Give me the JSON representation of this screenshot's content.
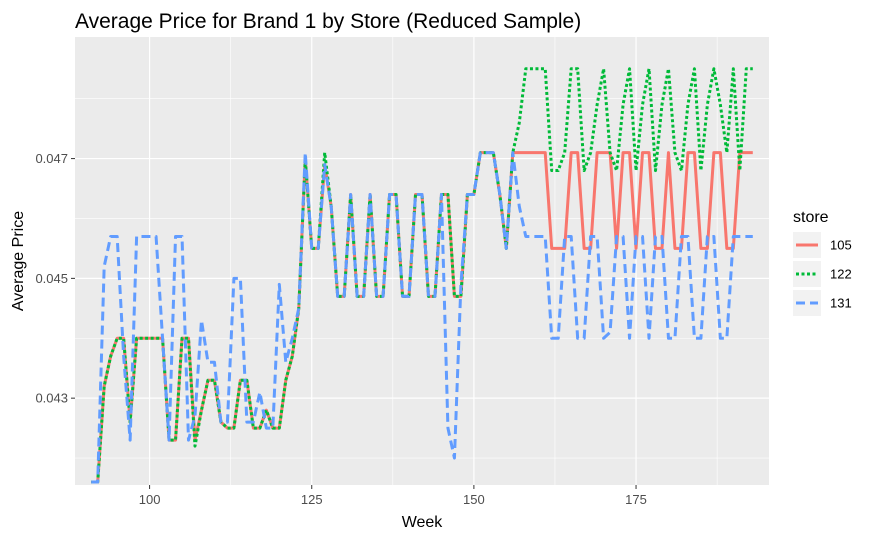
{
  "chart_data": {
    "type": "line",
    "title": "Average Price for Brand 1 by Store (Reduced Sample)",
    "xlabel": "Week",
    "ylabel": "Average Price",
    "xlim": [
      88.5,
      195.5
    ],
    "ylim": [
      0.04155,
      0.04903
    ],
    "x_ticks": [
      100,
      125,
      150,
      175
    ],
    "x_tick_labels": [
      "100",
      "125",
      "150",
      "175"
    ],
    "y_ticks": [
      0.043,
      0.045,
      0.047
    ],
    "y_tick_labels": [
      "0.043",
      "0.045",
      "0.047"
    ],
    "grid": true,
    "legend": {
      "title": "store",
      "position": "right"
    },
    "series": [
      {
        "name": "105",
        "color": "#F8766D",
        "dash": "solid",
        "points": [
          [
            91,
            0.0416
          ],
          [
            92,
            0.0416
          ],
          [
            93,
            0.0432
          ],
          [
            94,
            0.0437
          ],
          [
            95,
            0.044
          ],
          [
            96,
            0.044
          ],
          [
            97,
            0.0426
          ],
          [
            98,
            0.044
          ],
          [
            99,
            0.044
          ],
          [
            100,
            0.044
          ],
          [
            101,
            0.044
          ],
          [
            102,
            0.044
          ],
          [
            103,
            0.0423
          ],
          [
            104,
            0.0423
          ],
          [
            105,
            0.044
          ],
          [
            106,
            0.044
          ],
          [
            107,
            0.0423
          ],
          [
            108,
            0.0428
          ],
          [
            109,
            0.0433
          ],
          [
            110,
            0.0433
          ],
          [
            111,
            0.0426
          ],
          [
            112,
            0.0425
          ],
          [
            113,
            0.0425
          ],
          [
            114,
            0.0433
          ],
          [
            115,
            0.0433
          ],
          [
            116,
            0.0425
          ],
          [
            117,
            0.0425
          ],
          [
            118,
            0.0428
          ],
          [
            119,
            0.0425
          ],
          [
            120,
            0.0425
          ],
          [
            121,
            0.0433
          ],
          [
            122,
            0.0437
          ],
          [
            123,
            0.0445
          ],
          [
            124,
            0.047
          ],
          [
            125,
            0.0455
          ],
          [
            126,
            0.0455
          ],
          [
            127,
            0.0469
          ],
          [
            128,
            0.0462
          ],
          [
            129,
            0.0447
          ],
          [
            130,
            0.0447
          ],
          [
            131,
            0.0464
          ],
          [
            132,
            0.0447
          ],
          [
            133,
            0.0447
          ],
          [
            134,
            0.0464
          ],
          [
            135,
            0.0447
          ],
          [
            136,
            0.0447
          ],
          [
            137,
            0.0464
          ],
          [
            138,
            0.0464
          ],
          [
            139,
            0.0447
          ],
          [
            140,
            0.0447
          ],
          [
            141,
            0.0464
          ],
          [
            142,
            0.0464
          ],
          [
            143,
            0.0447
          ],
          [
            144,
            0.0447
          ],
          [
            145,
            0.0464
          ],
          [
            146,
            0.0464
          ],
          [
            147,
            0.0447
          ],
          [
            148,
            0.0447
          ],
          [
            149,
            0.0464
          ],
          [
            150,
            0.0464
          ],
          [
            151,
            0.0471
          ],
          [
            152,
            0.0471
          ],
          [
            153,
            0.0471
          ],
          [
            154,
            0.0464
          ],
          [
            155,
            0.0455
          ],
          [
            156,
            0.0471
          ],
          [
            157,
            0.0471
          ],
          [
            158,
            0.0471
          ],
          [
            159,
            0.0471
          ],
          [
            160,
            0.0471
          ],
          [
            161,
            0.0471
          ],
          [
            162,
            0.0455
          ],
          [
            163,
            0.0455
          ],
          [
            164,
            0.0455
          ],
          [
            165,
            0.0471
          ],
          [
            166,
            0.0471
          ],
          [
            167,
            0.0455
          ],
          [
            168,
            0.0455
          ],
          [
            169,
            0.0471
          ],
          [
            170,
            0.0471
          ],
          [
            171,
            0.0471
          ],
          [
            172,
            0.0455
          ],
          [
            173,
            0.0471
          ],
          [
            174,
            0.0471
          ],
          [
            175,
            0.0455
          ],
          [
            176,
            0.0471
          ],
          [
            177,
            0.0471
          ],
          [
            178,
            0.0455
          ],
          [
            179,
            0.0455
          ],
          [
            180,
            0.0471
          ],
          [
            181,
            0.0455
          ],
          [
            182,
            0.0455
          ],
          [
            183,
            0.0471
          ],
          [
            184,
            0.0471
          ],
          [
            185,
            0.0455
          ],
          [
            186,
            0.0455
          ],
          [
            187,
            0.0471
          ],
          [
            188,
            0.0471
          ],
          [
            189,
            0.0455
          ],
          [
            190,
            0.0455
          ],
          [
            191,
            0.0471
          ],
          [
            192,
            0.0471
          ],
          [
            193,
            0.0471
          ]
        ]
      },
      {
        "name": "122",
        "color": "#00BA38",
        "dash": "dotted",
        "points": [
          [
            91,
            0.0416
          ],
          [
            92,
            0.0416
          ],
          [
            93,
            0.0432
          ],
          [
            94,
            0.0437
          ],
          [
            95,
            0.044
          ],
          [
            96,
            0.044
          ],
          [
            97,
            0.0426
          ],
          [
            98,
            0.044
          ],
          [
            99,
            0.044
          ],
          [
            100,
            0.044
          ],
          [
            101,
            0.044
          ],
          [
            102,
            0.044
          ],
          [
            103,
            0.0423
          ],
          [
            104,
            0.0423
          ],
          [
            105,
            0.044
          ],
          [
            106,
            0.044
          ],
          [
            107,
            0.0422
          ],
          [
            108,
            0.0428
          ],
          [
            109,
            0.0433
          ],
          [
            110,
            0.0433
          ],
          [
            111,
            0.0426
          ],
          [
            112,
            0.0425
          ],
          [
            113,
            0.0425
          ],
          [
            114,
            0.0433
          ],
          [
            115,
            0.0433
          ],
          [
            116,
            0.0425
          ],
          [
            117,
            0.0425
          ],
          [
            118,
            0.0428
          ],
          [
            119,
            0.0425
          ],
          [
            120,
            0.0425
          ],
          [
            121,
            0.0433
          ],
          [
            122,
            0.0437
          ],
          [
            123,
            0.0445
          ],
          [
            124,
            0.047
          ],
          [
            125,
            0.0455
          ],
          [
            126,
            0.0455
          ],
          [
            127,
            0.0471
          ],
          [
            128,
            0.0462
          ],
          [
            129,
            0.0447
          ],
          [
            130,
            0.0447
          ],
          [
            131,
            0.0464
          ],
          [
            132,
            0.0447
          ],
          [
            133,
            0.0447
          ],
          [
            134,
            0.0464
          ],
          [
            135,
            0.0447
          ],
          [
            136,
            0.0447
          ],
          [
            137,
            0.0464
          ],
          [
            138,
            0.0464
          ],
          [
            139,
            0.0447
          ],
          [
            140,
            0.0447
          ],
          [
            141,
            0.0464
          ],
          [
            142,
            0.0464
          ],
          [
            143,
            0.0447
          ],
          [
            144,
            0.0447
          ],
          [
            145,
            0.0464
          ],
          [
            146,
            0.0464
          ],
          [
            147,
            0.0447
          ],
          [
            148,
            0.0447
          ],
          [
            149,
            0.0464
          ],
          [
            150,
            0.0464
          ],
          [
            151,
            0.0471
          ],
          [
            152,
            0.0471
          ],
          [
            153,
            0.0471
          ],
          [
            154,
            0.0464
          ],
          [
            155,
            0.0455
          ],
          [
            156,
            0.0471
          ],
          [
            157,
            0.0476
          ],
          [
            158,
            0.0485
          ],
          [
            159,
            0.0485
          ],
          [
            160,
            0.0485
          ],
          [
            161,
            0.0485
          ],
          [
            162,
            0.0468
          ],
          [
            163,
            0.0468
          ],
          [
            164,
            0.0471
          ],
          [
            165,
            0.0485
          ],
          [
            166,
            0.0485
          ],
          [
            167,
            0.0468
          ],
          [
            168,
            0.0471
          ],
          [
            169,
            0.0479
          ],
          [
            170,
            0.0485
          ],
          [
            171,
            0.0471
          ],
          [
            172,
            0.0468
          ],
          [
            173,
            0.0479
          ],
          [
            174,
            0.0485
          ],
          [
            175,
            0.0468
          ],
          [
            176,
            0.0479
          ],
          [
            177,
            0.0485
          ],
          [
            178,
            0.0468
          ],
          [
            179,
            0.0479
          ],
          [
            180,
            0.0485
          ],
          [
            181,
            0.0471
          ],
          [
            182,
            0.0468
          ],
          [
            183,
            0.0479
          ],
          [
            184,
            0.0485
          ],
          [
            185,
            0.0468
          ],
          [
            186,
            0.0479
          ],
          [
            187,
            0.0485
          ],
          [
            188,
            0.0479
          ],
          [
            189,
            0.0471
          ],
          [
            190,
            0.0485
          ],
          [
            191,
            0.0468
          ],
          [
            192,
            0.0485
          ],
          [
            193,
            0.0485
          ]
        ]
      },
      {
        "name": "131",
        "color": "#619CFF",
        "dash": "dashed",
        "points": [
          [
            91,
            0.0416
          ],
          [
            92,
            0.0416
          ],
          [
            93,
            0.0452
          ],
          [
            94,
            0.0457
          ],
          [
            95,
            0.0457
          ],
          [
            96,
            0.0437
          ],
          [
            97,
            0.0423
          ],
          [
            98,
            0.0457
          ],
          [
            99,
            0.0457
          ],
          [
            100,
            0.0457
          ],
          [
            101,
            0.0457
          ],
          [
            102,
            0.044
          ],
          [
            103,
            0.0423
          ],
          [
            104,
            0.0457
          ],
          [
            105,
            0.0457
          ],
          [
            106,
            0.0423
          ],
          [
            107,
            0.0427
          ],
          [
            108,
            0.0443
          ],
          [
            109,
            0.0436
          ],
          [
            110,
            0.0436
          ],
          [
            111,
            0.0426
          ],
          [
            112,
            0.0426
          ],
          [
            113,
            0.045
          ],
          [
            114,
            0.045
          ],
          [
            115,
            0.0426
          ],
          [
            116,
            0.0426
          ],
          [
            117,
            0.0431
          ],
          [
            118,
            0.0425
          ],
          [
            119,
            0.0425
          ],
          [
            120,
            0.0449
          ],
          [
            121,
            0.0436
          ],
          [
            122,
            0.044
          ],
          [
            123,
            0.0445
          ],
          [
            124,
            0.0471
          ],
          [
            125,
            0.0455
          ],
          [
            126,
            0.0455
          ],
          [
            127,
            0.0469
          ],
          [
            128,
            0.0462
          ],
          [
            129,
            0.0447
          ],
          [
            130,
            0.0447
          ],
          [
            131,
            0.0464
          ],
          [
            132,
            0.0447
          ],
          [
            133,
            0.0447
          ],
          [
            134,
            0.0464
          ],
          [
            135,
            0.0447
          ],
          [
            136,
            0.0447
          ],
          [
            137,
            0.0464
          ],
          [
            138,
            0.0464
          ],
          [
            139,
            0.0447
          ],
          [
            140,
            0.0447
          ],
          [
            141,
            0.0464
          ],
          [
            142,
            0.0464
          ],
          [
            143,
            0.0447
          ],
          [
            144,
            0.0447
          ],
          [
            145,
            0.0464
          ],
          [
            146,
            0.0425
          ],
          [
            147,
            0.042
          ],
          [
            148,
            0.0449
          ],
          [
            149,
            0.0464
          ],
          [
            150,
            0.0464
          ],
          [
            151,
            0.0471
          ],
          [
            152,
            0.0471
          ],
          [
            153,
            0.0471
          ],
          [
            154,
            0.0464
          ],
          [
            155,
            0.0455
          ],
          [
            156,
            0.0471
          ],
          [
            157,
            0.0462
          ],
          [
            158,
            0.0457
          ],
          [
            159,
            0.0457
          ],
          [
            160,
            0.0457
          ],
          [
            161,
            0.0457
          ],
          [
            162,
            0.044
          ],
          [
            163,
            0.044
          ],
          [
            164,
            0.0457
          ],
          [
            165,
            0.0457
          ],
          [
            166,
            0.044
          ],
          [
            167,
            0.044
          ],
          [
            168,
            0.0457
          ],
          [
            169,
            0.0457
          ],
          [
            170,
            0.044
          ],
          [
            171,
            0.0441
          ],
          [
            172,
            0.0457
          ],
          [
            173,
            0.0457
          ],
          [
            174,
            0.044
          ],
          [
            175,
            0.0457
          ],
          [
            176,
            0.0457
          ],
          [
            177,
            0.044
          ],
          [
            178,
            0.0457
          ],
          [
            179,
            0.0457
          ],
          [
            180,
            0.044
          ],
          [
            181,
            0.044
          ],
          [
            182,
            0.0457
          ],
          [
            183,
            0.0457
          ],
          [
            184,
            0.044
          ],
          [
            185,
            0.044
          ],
          [
            186,
            0.0457
          ],
          [
            187,
            0.0457
          ],
          [
            188,
            0.044
          ],
          [
            189,
            0.044
          ],
          [
            190,
            0.0457
          ],
          [
            191,
            0.0457
          ],
          [
            192,
            0.0457
          ],
          [
            193,
            0.0457
          ]
        ]
      }
    ]
  }
}
